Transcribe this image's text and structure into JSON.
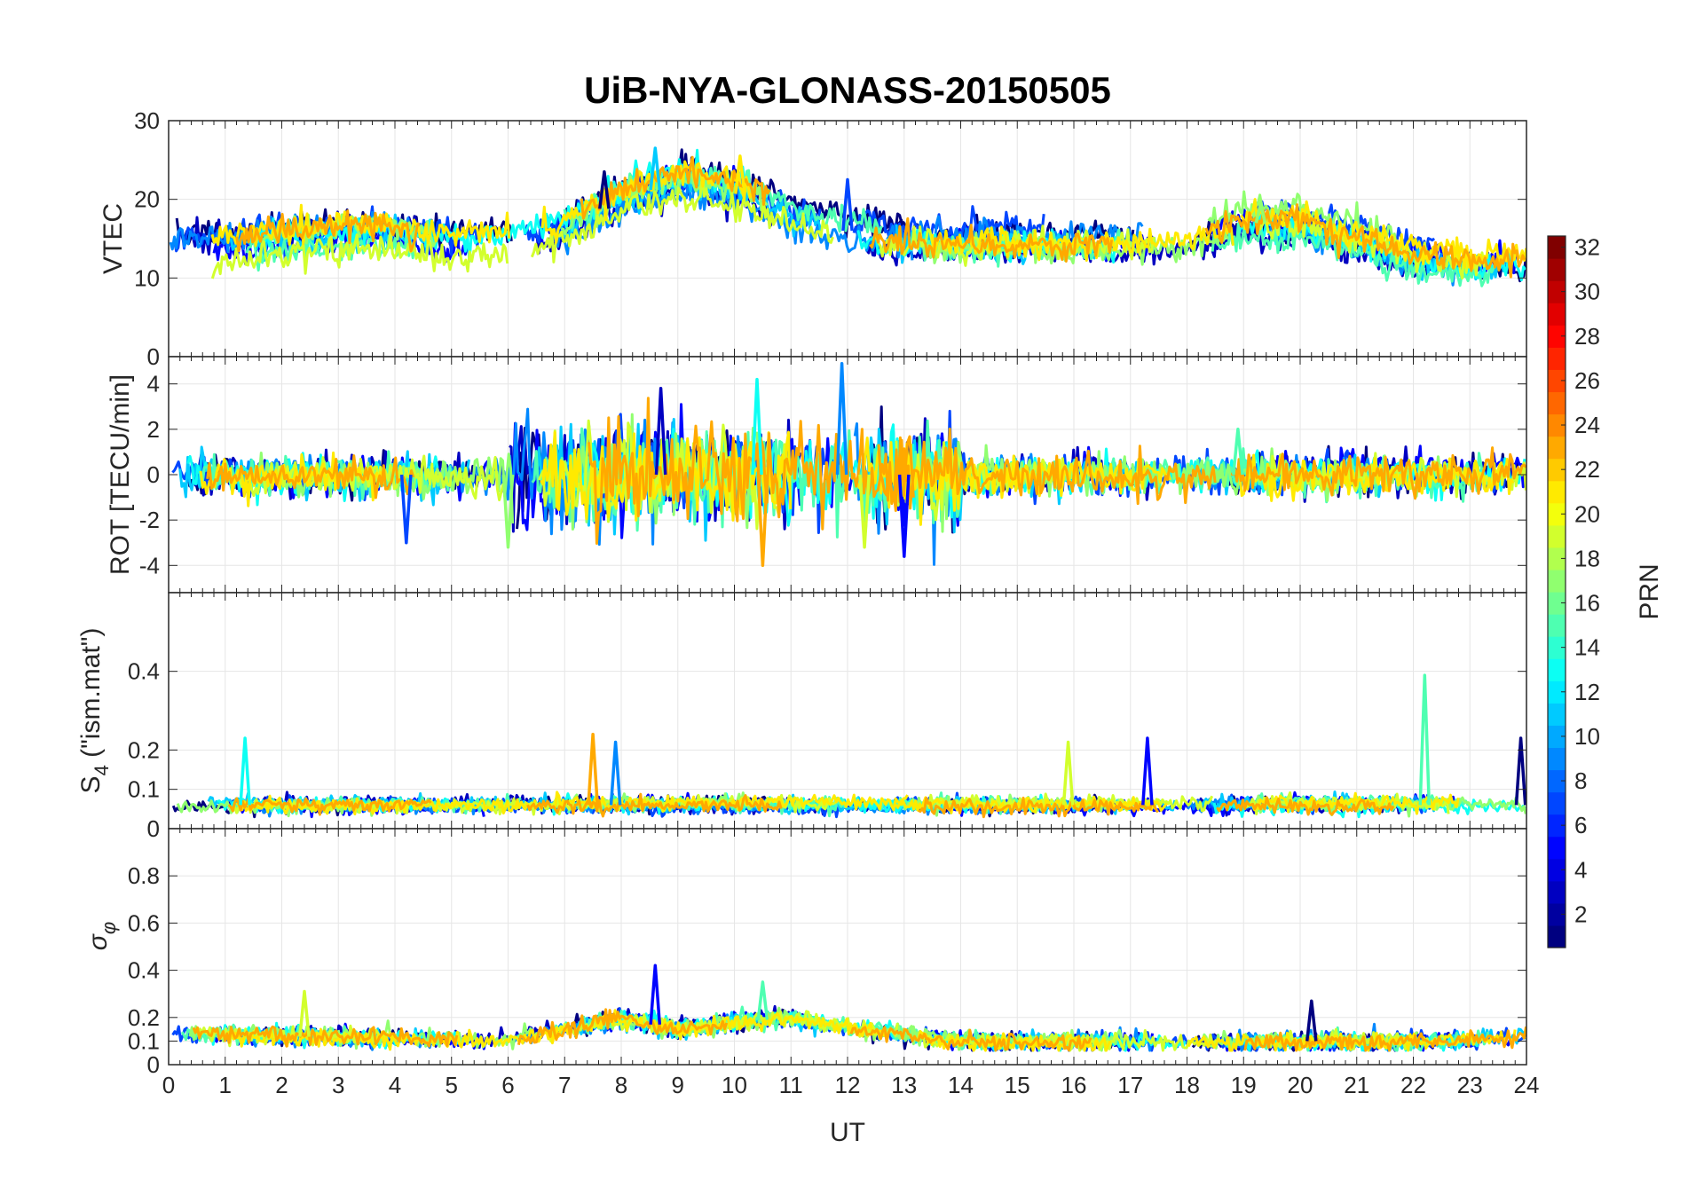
{
  "chart_data": {
    "type": "line",
    "title": "UiB-NYA-GLONASS-20150505",
    "xlabel": "UT",
    "xlim": [
      0,
      24
    ],
    "xticks": [
      "0",
      "1",
      "2",
      "3",
      "4",
      "5",
      "6",
      "7",
      "8",
      "9",
      "10",
      "11",
      "12",
      "13",
      "14",
      "15",
      "16",
      "17",
      "18",
      "19",
      "20",
      "21",
      "22",
      "23",
      "24"
    ],
    "grid": true,
    "panels": [
      {
        "id": "vtec",
        "ylabel": "VTEC",
        "ylim": [
          0,
          30
        ],
        "yticks": [
          0,
          10,
          20,
          30
        ],
        "ytick_labels": [
          "0",
          "10",
          "20",
          "30"
        ],
        "baseline": [
          [
            0,
            13.5
          ],
          [
            1,
            13.5
          ],
          [
            2,
            14.5
          ],
          [
            3,
            15
          ],
          [
            4,
            15
          ],
          [
            5,
            14
          ],
          [
            6,
            14.5
          ],
          [
            7,
            16
          ],
          [
            8,
            20
          ],
          [
            9,
            22
          ],
          [
            10,
            21
          ],
          [
            11,
            18
          ],
          [
            12,
            16
          ],
          [
            13,
            15
          ],
          [
            14,
            15
          ],
          [
            15,
            15
          ],
          [
            16,
            15
          ],
          [
            17,
            15
          ],
          [
            18,
            15.5
          ],
          [
            19,
            17
          ],
          [
            20,
            17
          ],
          [
            21,
            15
          ],
          [
            22,
            13
          ],
          [
            23,
            12
          ],
          [
            24,
            12
          ]
        ],
        "spikes": [
          [
            7.7,
            23.5
          ],
          [
            8.6,
            26.5
          ],
          [
            10.1,
            25.5
          ],
          [
            12.0,
            22.5
          ],
          [
            19.3,
            19.5
          ]
        ]
      },
      {
        "id": "rot",
        "ylabel": "ROT [TECU/min]",
        "ylim": [
          -5.2,
          5.2
        ],
        "yticks": [
          -4,
          -2,
          0,
          2,
          4
        ],
        "ytick_labels": [
          "-4",
          "-2",
          "0",
          "2",
          "4"
        ],
        "baseline": [
          [
            0,
            0
          ],
          [
            24,
            0
          ]
        ],
        "spikes": [
          [
            4.2,
            -3.0
          ],
          [
            6.0,
            -3.2
          ],
          [
            8.7,
            3.8
          ],
          [
            10.4,
            4.2
          ],
          [
            10.5,
            -4.0
          ],
          [
            11.9,
            4.9
          ],
          [
            12.3,
            -3.2
          ],
          [
            13.0,
            -3.6
          ],
          [
            18.9,
            2.0
          ]
        ]
      },
      {
        "id": "s4",
        "ylabel": "S4 (\"ism.mat\")",
        "ylabel_main": "S",
        "ylabel_sub": "4",
        "ylabel_rest": " (\"ism.mat\")",
        "ylim": [
          0,
          0.6
        ],
        "yticks": [
          0,
          0.1,
          0.2,
          0.4
        ],
        "ytick_labels": [
          "0",
          "0.1",
          "0.2",
          "0.4"
        ],
        "baseline": [
          [
            0,
            0.06
          ],
          [
            24,
            0.06
          ]
        ],
        "spikes": [
          [
            1.35,
            0.23
          ],
          [
            7.5,
            0.24
          ],
          [
            7.9,
            0.22
          ],
          [
            15.9,
            0.22
          ],
          [
            17.3,
            0.23
          ],
          [
            22.2,
            0.39
          ],
          [
            23.9,
            0.23
          ]
        ]
      },
      {
        "id": "sigma",
        "ylabel": "σφ",
        "ylabel_main": "σ",
        "ylabel_sub": "φ",
        "ylim": [
          0,
          1
        ],
        "yticks": [
          0,
          0.1,
          0.2,
          0.4,
          0.6,
          0.8
        ],
        "ytick_labels": [
          "0",
          "0.1",
          "0.2",
          "0.4",
          "0.6",
          "0.8"
        ],
        "baseline": [
          [
            0,
            0.13
          ],
          [
            2,
            0.12
          ],
          [
            4,
            0.11
          ],
          [
            6,
            0.1
          ],
          [
            8,
            0.2
          ],
          [
            9,
            0.15
          ],
          [
            10,
            0.18
          ],
          [
            11,
            0.2
          ],
          [
            12,
            0.16
          ],
          [
            14,
            0.1
          ],
          [
            18,
            0.1
          ],
          [
            20,
            0.1
          ],
          [
            22,
            0.1
          ],
          [
            24,
            0.12
          ]
        ],
        "spikes": [
          [
            2.4,
            0.31
          ],
          [
            8.6,
            0.42
          ],
          [
            10.5,
            0.35
          ],
          [
            20.2,
            0.27
          ]
        ]
      }
    ],
    "colorbar": {
      "label": "PRN",
      "range": [
        1,
        32
      ],
      "tick_labels": [
        "2",
        "4",
        "6",
        "8",
        "10",
        "12",
        "14",
        "16",
        "18",
        "20",
        "22",
        "24",
        "26",
        "28",
        "30",
        "32"
      ],
      "colormap": "jet"
    },
    "series_prns": [
      1,
      3,
      5,
      7,
      9,
      11,
      13,
      15,
      17,
      19,
      21,
      23
    ]
  }
}
